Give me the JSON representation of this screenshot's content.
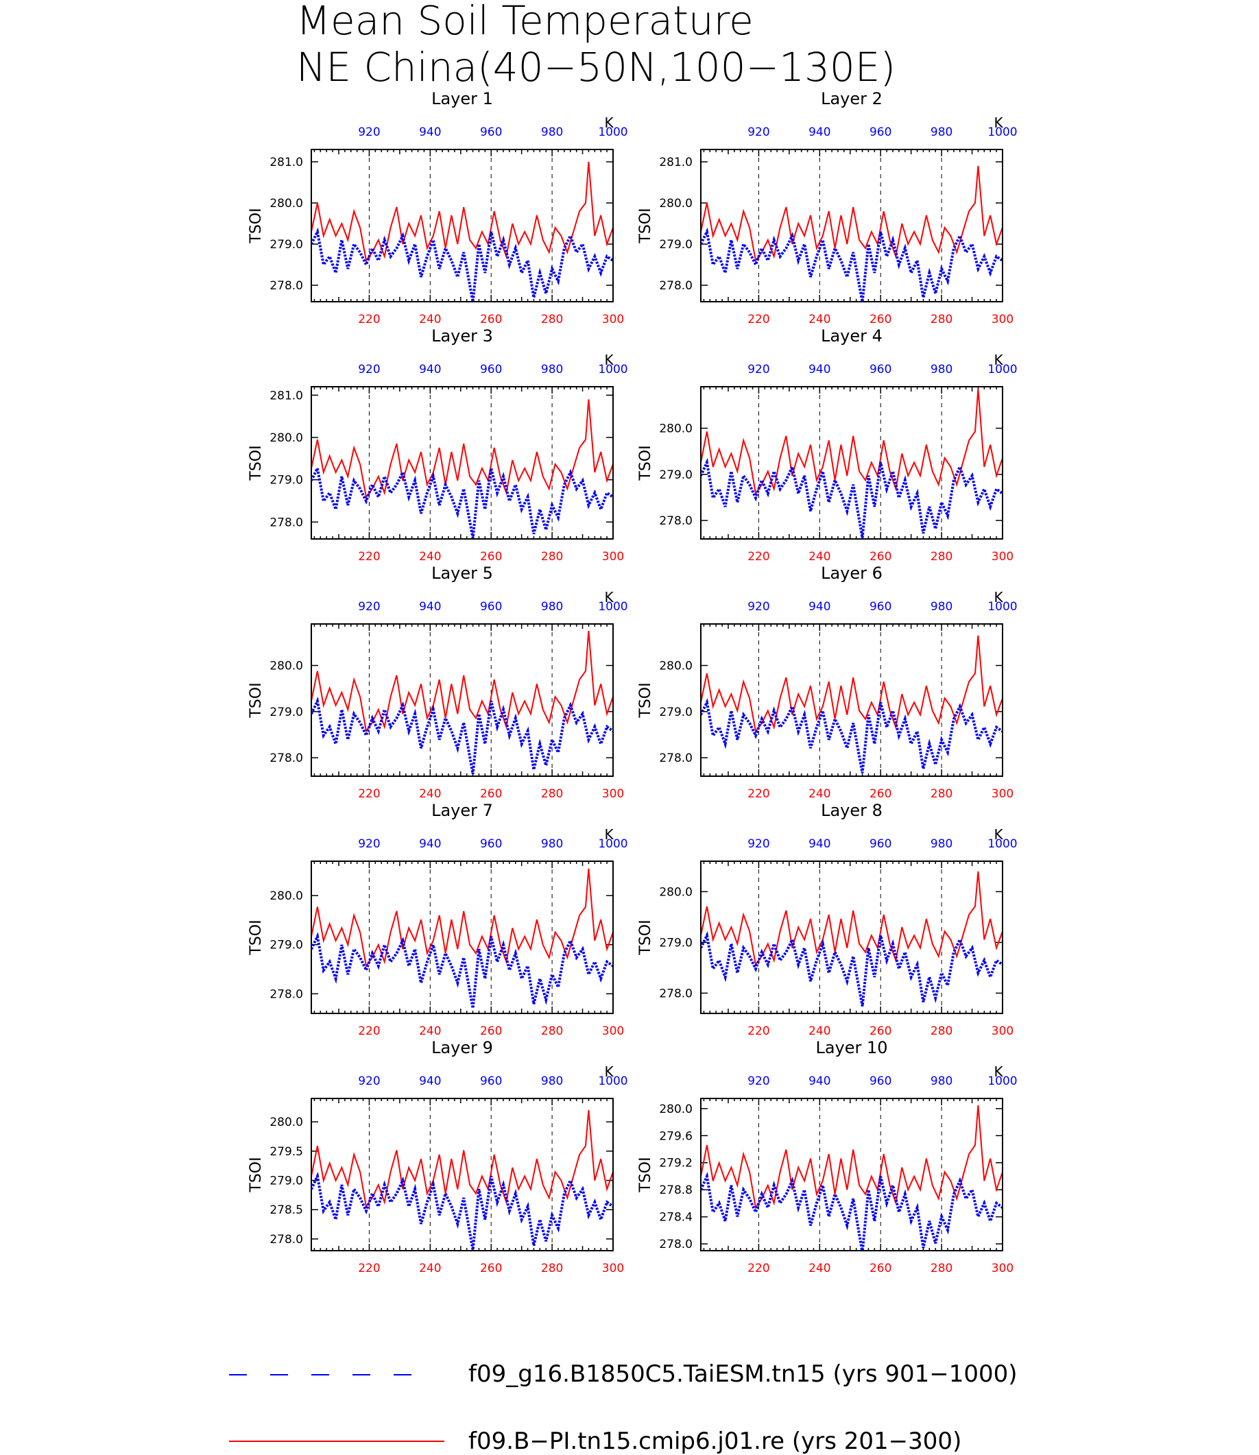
{
  "title_lines": [
    "Mean Soil Temperature",
    "NE China(40−50N,100−130E)"
  ],
  "colors": {
    "series_b": "#ff0000",
    "series_a": "#0000ff",
    "axis": "#000000"
  },
  "chart_data": {
    "type": "line",
    "panel_titles": [
      "Layer 1",
      "Layer 2",
      "Layer 3",
      "Layer 4",
      "Layer 5",
      "Layer 6",
      "Layer 7",
      "Layer 8",
      "Layer 9",
      "Layer 10"
    ],
    "ylabel": "TSOI",
    "top_axis_label": "K",
    "bottom_axis": {
      "range": [
        201,
        300
      ],
      "ticks": [
        220,
        240,
        260,
        280,
        300
      ]
    },
    "top_axis": {
      "range": [
        901,
        1000
      ],
      "ticks": [
        920,
        940,
        960,
        980,
        1000
      ]
    },
    "grid": "vertical dashed lines at 220, 240, 260, 280",
    "legend_position": "bottom",
    "legend": [
      {
        "label": "f09_g16.B1850C5.TaiESM.tn15 (yrs 901−1000)",
        "color": "#0000ff",
        "style": "dashed",
        "axis": "top"
      },
      {
        "label": "f09.B−PI.tn15.cmip6.j01.re (yrs 201−300)",
        "color": "#ff0000",
        "style": "solid",
        "axis": "bottom"
      }
    ],
    "panels": [
      {
        "ylim": [
          277.6,
          281.3
        ],
        "yticks": [
          "278.0",
          "279.0",
          "280.0",
          "281.0"
        ],
        "yticks_num": [
          278.0,
          279.0,
          280.0,
          281.0
        ],
        "shift": 0.0,
        "amp": 1.0,
        "peak": 281.0
      },
      {
        "ylim": [
          277.6,
          281.3
        ],
        "yticks": [
          "278.0",
          "279.0",
          "280.0",
          "281.0"
        ],
        "yticks_num": [
          278.0,
          279.0,
          280.0,
          281.0
        ],
        "shift": 0.0,
        "amp": 1.0,
        "peak": 280.9
      },
      {
        "ylim": [
          277.6,
          281.2
        ],
        "yticks": [
          "278.0",
          "279.0",
          "280.0",
          "281.0"
        ],
        "yticks_num": [
          278.0,
          279.0,
          280.0,
          281.0
        ],
        "shift": -0.02,
        "amp": 0.97,
        "peak": 280.9
      },
      {
        "ylim": [
          277.6,
          280.9
        ],
        "yticks": [
          "278.0",
          "279.0",
          "280.0"
        ],
        "yticks_num": [
          278.0,
          279.0,
          280.0
        ],
        "shift": -0.03,
        "amp": 0.96,
        "peak": 280.85
      },
      {
        "ylim": [
          277.6,
          280.9
        ],
        "yticks": [
          "278.0",
          "279.0",
          "280.0"
        ],
        "yticks_num": [
          278.0,
          279.0,
          280.0
        ],
        "shift": -0.05,
        "amp": 0.93,
        "peak": 280.75
      },
      {
        "ylim": [
          277.6,
          280.9
        ],
        "yticks": [
          "278.0",
          "279.0",
          "280.0"
        ],
        "yticks_num": [
          278.0,
          279.0,
          280.0
        ],
        "shift": -0.07,
        "amp": 0.9,
        "peak": 280.65
      },
      {
        "ylim": [
          277.6,
          280.7
        ],
        "yticks": [
          "278.0",
          "279.0",
          "280.0"
        ],
        "yticks_num": [
          278.0,
          279.0,
          280.0
        ],
        "shift": -0.09,
        "amp": 0.86,
        "peak": 280.55
      },
      {
        "ylim": [
          277.6,
          280.6
        ],
        "yticks": [
          "278.0",
          "279.0",
          "280.0"
        ],
        "yticks_num": [
          278.0,
          279.0,
          280.0
        ],
        "shift": -0.11,
        "amp": 0.82,
        "peak": 280.4
      },
      {
        "ylim": [
          277.8,
          280.4
        ],
        "yticks": [
          "278.0",
          "278.5",
          "279.0",
          "279.5",
          "280.0"
        ],
        "yticks_num": [
          278.0,
          278.5,
          279.0,
          279.5,
          280.0
        ],
        "shift": -0.15,
        "amp": 0.74,
        "peak": 280.2
      },
      {
        "ylim": [
          277.9,
          280.15
        ],
        "yticks": [
          "278.0",
          "278.4",
          "278.8",
          "279.2",
          "279.6",
          "280.0"
        ],
        "yticks_num": [
          278.0,
          278.4,
          278.8,
          279.2,
          279.6,
          280.0
        ],
        "shift": -0.2,
        "amp": 0.66,
        "peak": 280.05
      }
    ],
    "series_b_base": [
      [
        201,
        279.3
      ],
      [
        203,
        280.0
      ],
      [
        205,
        279.2
      ],
      [
        207,
        279.6
      ],
      [
        209,
        279.2
      ],
      [
        211,
        279.5
      ],
      [
        213,
        279.1
      ],
      [
        215,
        279.8
      ],
      [
        217,
        279.4
      ],
      [
        219,
        278.6
      ],
      [
        221,
        278.8
      ],
      [
        223,
        279.1
      ],
      [
        225,
        278.7
      ],
      [
        227,
        279.4
      ],
      [
        229,
        279.9
      ],
      [
        231,
        279.0
      ],
      [
        233,
        279.5
      ],
      [
        235,
        279.2
      ],
      [
        237,
        279.7
      ],
      [
        239,
        278.9
      ],
      [
        241,
        279.2
      ],
      [
        243,
        279.8
      ],
      [
        245,
        278.9
      ],
      [
        247,
        279.7
      ],
      [
        249,
        279.0
      ],
      [
        251,
        279.9
      ],
      [
        253,
        279.1
      ],
      [
        255,
        278.9
      ],
      [
        257,
        279.3
      ],
      [
        259,
        279.0
      ],
      [
        261,
        279.8
      ],
      [
        263,
        279.1
      ],
      [
        265,
        278.7
      ],
      [
        267,
        279.5
      ],
      [
        269,
        279.0
      ],
      [
        271,
        279.3
      ],
      [
        273,
        279.0
      ],
      [
        275,
        279.7
      ],
      [
        277,
        279.1
      ],
      [
        279,
        278.8
      ],
      [
        281,
        279.4
      ],
      [
        283,
        279.2
      ],
      [
        285,
        278.8
      ],
      [
        287,
        279.3
      ],
      [
        289,
        279.8
      ],
      [
        291,
        280.0
      ],
      [
        292,
        281.0
      ],
      [
        294,
        279.2
      ],
      [
        296,
        279.7
      ],
      [
        298,
        279.0
      ],
      [
        300,
        279.4
      ]
    ],
    "series_a_base": [
      [
        901,
        279.0
      ],
      [
        903,
        279.3
      ],
      [
        905,
        278.5
      ],
      [
        907,
        278.7
      ],
      [
        909,
        278.3
      ],
      [
        911,
        279.1
      ],
      [
        913,
        278.4
      ],
      [
        915,
        279.0
      ],
      [
        917,
        278.8
      ],
      [
        919,
        278.5
      ],
      [
        921,
        278.9
      ],
      [
        923,
        278.6
      ],
      [
        925,
        279.1
      ],
      [
        927,
        278.7
      ],
      [
        929,
        278.9
      ],
      [
        931,
        279.2
      ],
      [
        933,
        278.6
      ],
      [
        935,
        279.0
      ],
      [
        937,
        278.2
      ],
      [
        939,
        278.7
      ],
      [
        941,
        279.1
      ],
      [
        943,
        278.4
      ],
      [
        945,
        278.9
      ],
      [
        947,
        278.6
      ],
      [
        949,
        278.2
      ],
      [
        951,
        278.8
      ],
      [
        953,
        278.0
      ],
      [
        954,
        277.6
      ],
      [
        956,
        279.0
      ],
      [
        958,
        278.3
      ],
      [
        960,
        279.3
      ],
      [
        962,
        278.7
      ],
      [
        964,
        279.1
      ],
      [
        966,
        278.5
      ],
      [
        968,
        278.9
      ],
      [
        970,
        278.3
      ],
      [
        972,
        278.6
      ],
      [
        974,
        277.7
      ],
      [
        976,
        278.3
      ],
      [
        978,
        277.8
      ],
      [
        980,
        278.4
      ],
      [
        982,
        278.1
      ],
      [
        984,
        278.9
      ],
      [
        986,
        279.2
      ],
      [
        988,
        278.8
      ],
      [
        990,
        279.0
      ],
      [
        992,
        278.4
      ],
      [
        994,
        278.7
      ],
      [
        996,
        278.3
      ],
      [
        998,
        278.7
      ],
      [
        1000,
        278.6
      ]
    ]
  }
}
